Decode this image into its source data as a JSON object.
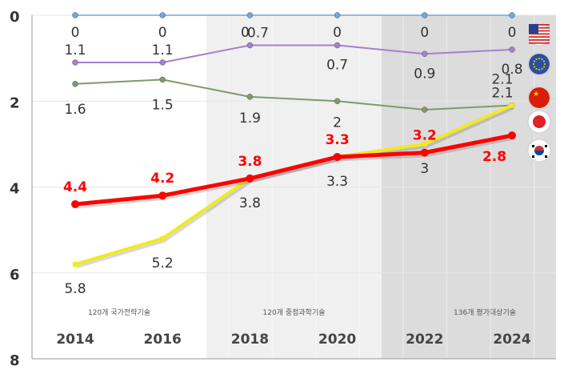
{
  "chart_data": {
    "type": "line",
    "x": [
      "2014",
      "2016",
      "2018",
      "2020",
      "2022",
      "2024"
    ],
    "ylim": [
      0,
      8
    ],
    "y_inverted": true,
    "y_ticks": [
      "0",
      "2",
      "4",
      "6",
      "8"
    ],
    "grid": true,
    "periods": [
      {
        "label": "120개 국가전략기술",
        "color": "#ffffff"
      },
      {
        "label": "120개 중점과학기술",
        "color": "#f0f0f0"
      },
      {
        "label": "136개 평가대상기술",
        "color": "#dcdcdc"
      }
    ],
    "series": [
      {
        "flag": "usa-flag-icon",
        "color": "#6fa8dc",
        "values": [
          0,
          0,
          0,
          0,
          0,
          0
        ],
        "labels": [
          "0",
          "0",
          "0",
          "0",
          "0",
          "0"
        ]
      },
      {
        "flag": "eu-flag-icon",
        "color": "#a57fd0",
        "values": [
          1.1,
          1.1,
          0.7,
          0.7,
          0.9,
          0.8
        ],
        "labels": [
          "1.1",
          "1.1",
          "0.7",
          "0.7",
          "0.9",
          "0.8"
        ]
      },
      {
        "flag": "china-flag-icon",
        "color": "#7f9a6a",
        "values": [
          1.6,
          1.5,
          1.9,
          2,
          2.2,
          2.1
        ],
        "labels": [
          "1.6",
          "1.5",
          "1.9",
          "2",
          "",
          "2.1"
        ]
      },
      {
        "flag": "japan-flag-icon",
        "color": "#f2ea1e",
        "values": [
          5.8,
          5.2,
          3.8,
          3.3,
          3,
          2.1
        ],
        "labels": [
          "5.8",
          "5.2",
          "3.8",
          "3.3",
          "3",
          "2.1"
        ]
      },
      {
        "flag": "korea-flag-icon",
        "color": "#ff0000",
        "values": [
          4.4,
          4.2,
          3.8,
          3.3,
          3.2,
          2.8
        ],
        "labels": [
          "4.4",
          "4.2",
          "3.8",
          "3.3",
          "3.2",
          "2.8"
        ]
      }
    ]
  }
}
